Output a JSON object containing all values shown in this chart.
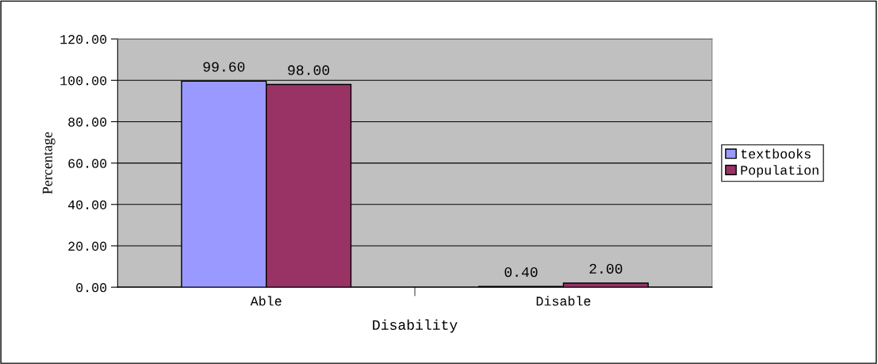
{
  "chart_data": {
    "type": "bar",
    "xlabel": "Disability",
    "ylabel": "Percentage",
    "categories": [
      "Able",
      "Disable"
    ],
    "series": [
      {
        "name": "textbooks",
        "color": "#9999ff",
        "values": [
          99.6,
          0.4
        ],
        "value_labels": [
          "99.60",
          "0.40"
        ]
      },
      {
        "name": "Population",
        "color": "#993366",
        "values": [
          98.0,
          2.0
        ],
        "value_labels": [
          "98.00",
          "2.00"
        ]
      }
    ],
    "ylim": [
      0,
      120
    ],
    "yticks": [
      {
        "value": 0,
        "label": "0.00"
      },
      {
        "value": 20,
        "label": "20.00"
      },
      {
        "value": 40,
        "label": "40.00"
      },
      {
        "value": 60,
        "label": "60.00"
      },
      {
        "value": 80,
        "label": "80.00"
      },
      {
        "value": 100,
        "label": "100.00"
      },
      {
        "value": 120,
        "label": "120.00"
      }
    ],
    "grid": "y",
    "legend": "right"
  }
}
